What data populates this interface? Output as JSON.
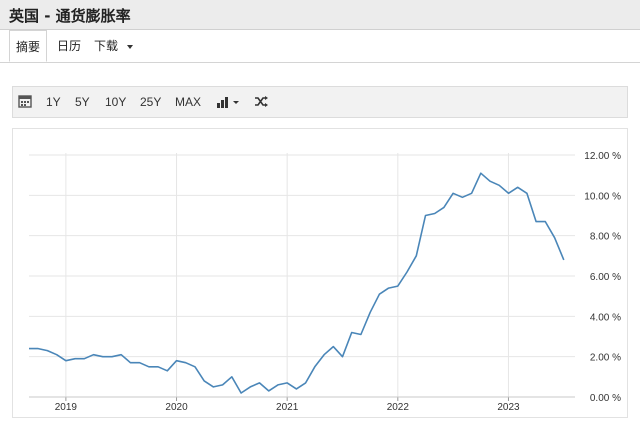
{
  "header": {
    "title": "英国 - 通货膨胀率"
  },
  "tabs": [
    {
      "label": "摘要"
    },
    {
      "label": "日历"
    },
    {
      "label": "下载"
    }
  ],
  "toolbar": {
    "ranges": [
      "1Y",
      "5Y",
      "10Y",
      "25Y",
      "MAX"
    ],
    "icons": [
      "calendar-icon",
      "bar-chart-icon",
      "shuffle-icon"
    ]
  },
  "colors": {
    "line": "#4a86b8",
    "grid": "#e6e6e6"
  },
  "chart_data": {
    "type": "line",
    "title": "",
    "xlabel": "",
    "ylabel": "",
    "x_ticks": [
      "2019",
      "2020",
      "2021",
      "2022",
      "2023"
    ],
    "y_ticks": [
      "0.00 %",
      "2.00 %",
      "4.00 %",
      "6.00 %",
      "8.00 %",
      "10.00 %",
      "12.00 %"
    ],
    "ylim": [
      0,
      12
    ],
    "xlim": [
      "2018-09",
      "2023-08"
    ],
    "grid": true,
    "series": [
      {
        "x": [
          "2018-09",
          "2018-10",
          "2018-11",
          "2018-12",
          "2019-01",
          "2019-02",
          "2019-03",
          "2019-04",
          "2019-05",
          "2019-06",
          "2019-07",
          "2019-08",
          "2019-09",
          "2019-10",
          "2019-11",
          "2019-12",
          "2020-01",
          "2020-02",
          "2020-03",
          "2020-04",
          "2020-05",
          "2020-06",
          "2020-07",
          "2020-08",
          "2020-09",
          "2020-10",
          "2020-11",
          "2020-12",
          "2021-01",
          "2021-02",
          "2021-03",
          "2021-04",
          "2021-05",
          "2021-06",
          "2021-07",
          "2021-08",
          "2021-09",
          "2021-10",
          "2021-11",
          "2021-12",
          "2022-01",
          "2022-02",
          "2022-03",
          "2022-04",
          "2022-05",
          "2022-06",
          "2022-07",
          "2022-08",
          "2022-09",
          "2022-10",
          "2022-11",
          "2022-12",
          "2023-01",
          "2023-02",
          "2023-03",
          "2023-04",
          "2023-05",
          "2023-06",
          "2023-07"
        ],
        "values": [
          2.4,
          2.4,
          2.3,
          2.1,
          1.8,
          1.9,
          1.9,
          2.1,
          2.0,
          2.0,
          2.1,
          1.7,
          1.7,
          1.5,
          1.5,
          1.3,
          1.8,
          1.7,
          1.5,
          0.8,
          0.5,
          0.6,
          1.0,
          0.2,
          0.5,
          0.7,
          0.3,
          0.6,
          0.7,
          0.4,
          0.7,
          1.5,
          2.1,
          2.5,
          2.0,
          3.2,
          3.1,
          4.2,
          5.1,
          5.4,
          5.5,
          6.2,
          7.0,
          9.0,
          9.1,
          9.4,
          10.1,
          9.9,
          10.1,
          11.1,
          10.7,
          10.5,
          10.1,
          10.4,
          10.1,
          8.7,
          8.7,
          7.9,
          6.8
        ]
      }
    ]
  }
}
